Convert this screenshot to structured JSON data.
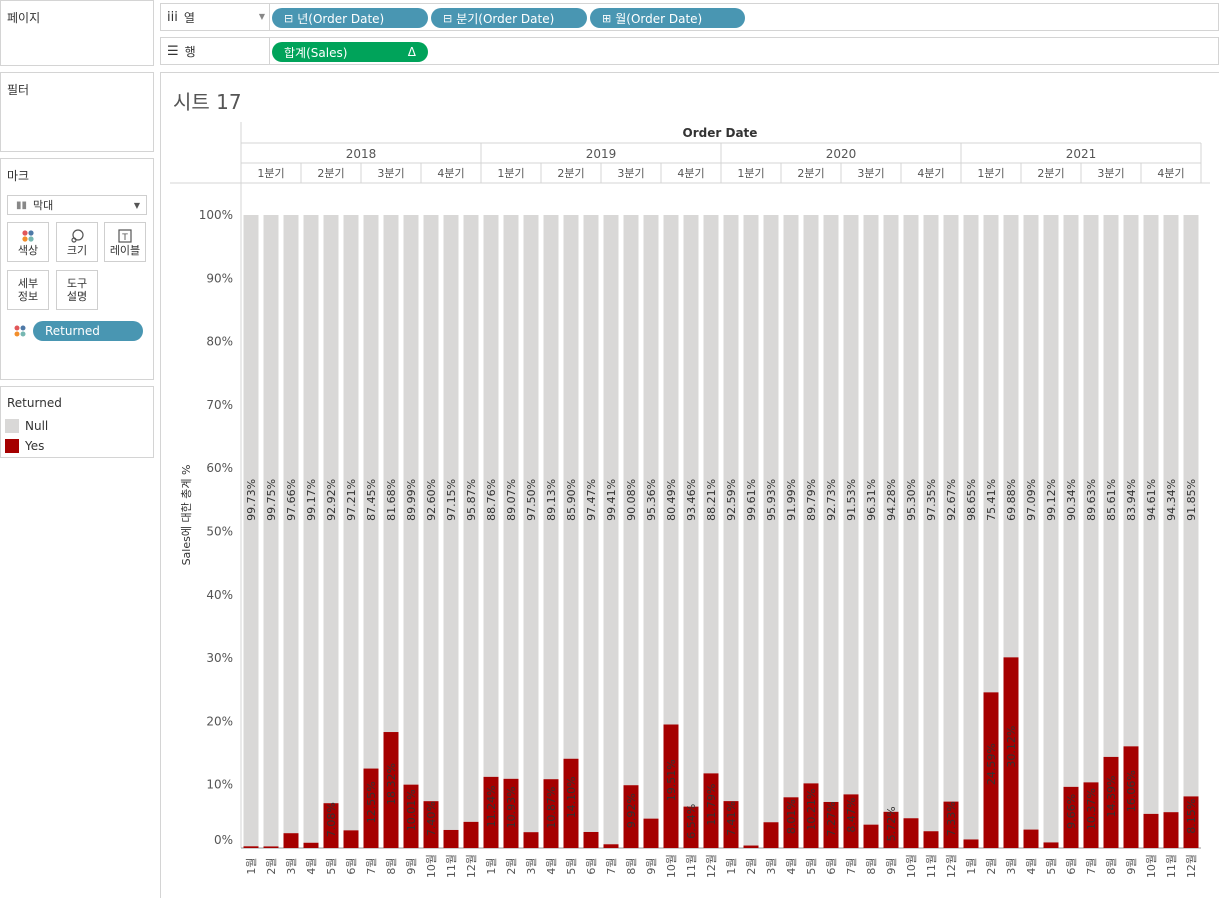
{
  "left_panel": {
    "pages_title": "페이지",
    "filters_title": "필터",
    "marks": {
      "title": "마크",
      "mark_type": "막대",
      "buttons": {
        "color": "색상",
        "size": "크기",
        "label": "레이블",
        "detail_line1": "세부",
        "detail_line2": "정보",
        "tooltip_line1": "도구",
        "tooltip_line2": "설명"
      },
      "color_pill": "Returned"
    },
    "legend": {
      "title": "Returned",
      "items": [
        {
          "label": "Null",
          "color": "#d9d8d7"
        },
        {
          "label": "Yes",
          "color": "#a50000"
        }
      ]
    }
  },
  "shelves": {
    "columns_label": "열",
    "rows_label": "행",
    "column_pills": [
      "년(Order Date)",
      "분기(Order Date)",
      "월(Order Date)"
    ],
    "row_pill": "합계(Sales)",
    "row_pill_delta": "Δ"
  },
  "sheet": {
    "title": "시트 17"
  },
  "chart_data": {
    "type": "bar",
    "stacked": "percent",
    "title": "",
    "column_header": "Order Date",
    "ylabel": "Sales에 대한 총계 %",
    "ylim": [
      0,
      100
    ],
    "y_ticks": [
      "0%",
      "10%",
      "20%",
      "30%",
      "40%",
      "50%",
      "60%",
      "70%",
      "80%",
      "90%",
      "100%"
    ],
    "years": [
      "2018",
      "2019",
      "2020",
      "2021"
    ],
    "quarter_labels": [
      "1분기",
      "2분기",
      "3분기",
      "4분기"
    ],
    "month_labels": [
      "1월",
      "2월",
      "3월",
      "4월",
      "5월",
      "6월",
      "7월",
      "8월",
      "9월",
      "10월",
      "11월",
      "12월"
    ],
    "colors": {
      "Null": "#d9d8d7",
      "Yes": "#a50000"
    },
    "series": [
      {
        "name": "Null",
        "values": [
          99.73,
          99.75,
          97.66,
          99.17,
          92.92,
          97.21,
          87.45,
          81.68,
          89.99,
          92.6,
          97.15,
          95.87,
          88.76,
          89.07,
          97.5,
          89.13,
          85.9,
          97.47,
          99.41,
          90.08,
          95.36,
          80.49,
          93.46,
          88.21,
          92.59,
          99.61,
          95.93,
          91.99,
          89.79,
          92.73,
          91.53,
          96.31,
          94.28,
          95.3,
          97.35,
          92.67,
          98.65,
          75.41,
          69.88,
          97.09,
          99.12,
          90.34,
          89.63,
          85.61,
          83.94,
          94.61,
          94.34,
          91.85
        ]
      },
      {
        "name": "Yes",
        "values": [
          0.27,
          0.25,
          2.34,
          0.83,
          7.08,
          2.79,
          12.55,
          18.32,
          10.01,
          7.4,
          2.85,
          4.13,
          11.24,
          10.93,
          2.5,
          10.87,
          14.1,
          2.53,
          0.59,
          9.92,
          4.64,
          19.51,
          6.54,
          11.79,
          7.41,
          0.39,
          4.07,
          8.01,
          10.21,
          7.27,
          8.47,
          3.69,
          5.72,
          4.7,
          2.65,
          7.33,
          1.35,
          24.59,
          30.12,
          2.91,
          0.88,
          9.66,
          10.37,
          14.39,
          16.06,
          5.39,
          5.66,
          8.15
        ]
      }
    ],
    "yes_labels": [
      "",
      "",
      "",
      "",
      "7.08%",
      "",
      "12.55%",
      "18.32%",
      "10.01%",
      "7.40%",
      "",
      "",
      "11.24%",
      "10.93%",
      "",
      "10.87%",
      "14.10%",
      "",
      "",
      "9.92%",
      "",
      "19.51%",
      "6.54%",
      "11.79%",
      "7.41%",
      "",
      "",
      "8.01%",
      "10.21%",
      "7.27%",
      "8.47%",
      "",
      "5.72%",
      "",
      "",
      "7.33%",
      "",
      "24.59%",
      "30.12%",
      "",
      "",
      "9.66%",
      "10.37%",
      "14.39%",
      "16.06%",
      "",
      "",
      "8.15%"
    ],
    "grid": false,
    "legend": "left-panel"
  }
}
